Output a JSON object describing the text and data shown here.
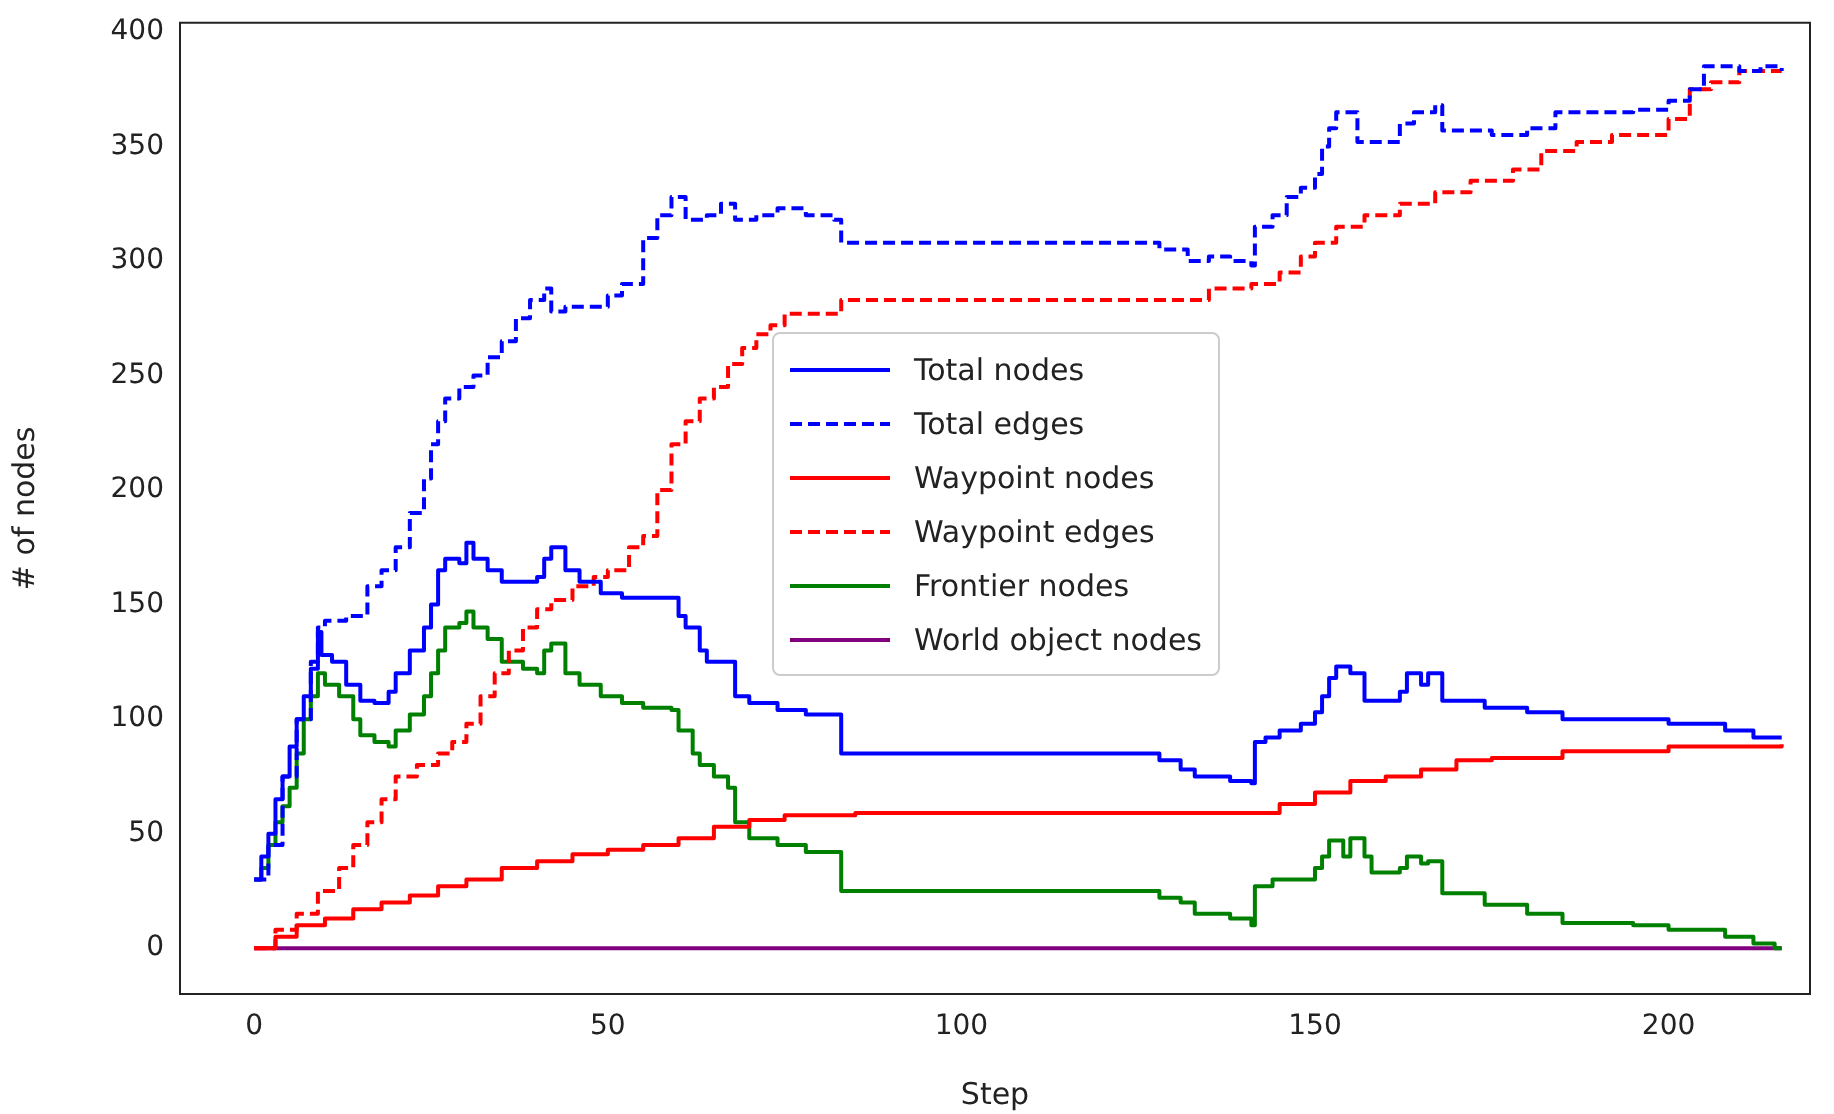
{
  "chart_data": {
    "type": "step",
    "xlabel": "Step",
    "ylabel": "# of nodes",
    "xlim": [
      -10.5,
      220
    ],
    "ylim": [
      -20,
      404
    ],
    "xticks": [
      0,
      50,
      100,
      150,
      200
    ],
    "yticks": [
      0,
      50,
      100,
      150,
      200,
      250,
      300,
      350,
      400
    ],
    "grid": false,
    "legend": "center",
    "series": [
      {
        "name": "Total nodes",
        "color": "#0000ff",
        "line_style": "solid",
        "x": [
          0,
          1,
          2,
          3,
          4,
          5,
          6,
          7,
          8,
          9,
          9.5,
          11,
          13,
          15,
          17,
          19,
          20,
          22,
          24,
          25,
          26,
          27,
          29,
          30,
          31,
          33,
          35,
          40,
          41,
          42,
          44,
          46,
          49,
          52,
          59,
          60,
          61,
          63,
          64,
          68,
          70,
          74,
          78,
          83,
          125,
          128,
          131,
          133,
          138,
          141,
          141.5,
          143,
          145,
          148,
          150,
          151,
          152,
          153,
          155,
          157,
          162,
          163,
          165,
          166,
          168,
          174,
          180,
          185,
          200,
          208,
          212,
          216
        ],
        "values": [
          30,
          40,
          50,
          65,
          75,
          88,
          100,
          110,
          122,
          138,
          128,
          125,
          115,
          108,
          107,
          112,
          120,
          130,
          140,
          150,
          165,
          170,
          168,
          177,
          170,
          165,
          160,
          162,
          170,
          175,
          165,
          160,
          155,
          153,
          153,
          145,
          140,
          130,
          125,
          110,
          107,
          104,
          102,
          85,
          85,
          82,
          78,
          75,
          73,
          72,
          90,
          92,
          95,
          98,
          103,
          110,
          118,
          123,
          120,
          108,
          112,
          120,
          115,
          120,
          108,
          105,
          103,
          100,
          98,
          95,
          92,
          92
        ]
      },
      {
        "name": "Total edges",
        "color": "#0000ff",
        "line_style": "dashed",
        "x": [
          0,
          2,
          4,
          6,
          8,
          9,
          10,
          13,
          16,
          18,
          20,
          22,
          24,
          25,
          26,
          27,
          29,
          31,
          33,
          35,
          37,
          39,
          41,
          42,
          44,
          46,
          50,
          52,
          55,
          57,
          59,
          61,
          64,
          66,
          68,
          71,
          74,
          78,
          82,
          83,
          125,
          128,
          132,
          135,
          138,
          141,
          141.5,
          144,
          146,
          148,
          150,
          151,
          152,
          153,
          156,
          160,
          162,
          164,
          167,
          168,
          175,
          180,
          184,
          195,
          200,
          203,
          205,
          210,
          213,
          216
        ],
        "values": [
          30,
          45,
          75,
          100,
          125,
          140,
          143,
          145,
          158,
          165,
          175,
          190,
          205,
          220,
          230,
          240,
          245,
          250,
          258,
          265,
          275,
          283,
          288,
          278,
          280,
          280,
          285,
          290,
          310,
          320,
          328,
          318,
          320,
          325,
          318,
          320,
          323,
          320,
          318,
          308,
          308,
          305,
          300,
          302,
          300,
          298,
          315,
          320,
          328,
          332,
          338,
          350,
          358,
          365,
          352,
          352,
          360,
          365,
          368,
          357,
          355,
          358,
          365,
          366,
          370,
          375,
          385,
          383,
          385,
          383
        ]
      },
      {
        "name": "Waypoint nodes",
        "color": "#ff0000",
        "line_style": "solid",
        "x": [
          0,
          3,
          6,
          10,
          14,
          18,
          22,
          26,
          30,
          35,
          40,
          45,
          50,
          55,
          60,
          65,
          70,
          75,
          85,
          140,
          145,
          150,
          155,
          160,
          165,
          170,
          175,
          185,
          200,
          216
        ],
        "values": [
          0,
          5,
          10,
          13,
          17,
          20,
          23,
          27,
          30,
          35,
          38,
          41,
          43,
          45,
          48,
          53,
          56,
          58,
          59,
          59,
          63,
          68,
          73,
          75,
          78,
          82,
          83,
          86,
          88,
          89
        ]
      },
      {
        "name": "Waypoint edges",
        "color": "#ff0000",
        "line_style": "dashed",
        "x": [
          0,
          3,
          6,
          9,
          12,
          14,
          16,
          18,
          20,
          23,
          26,
          28,
          30,
          32,
          34,
          36,
          38,
          40,
          42,
          45,
          48,
          50,
          53,
          55,
          57,
          59,
          61,
          63,
          65,
          67,
          69,
          71,
          73,
          75,
          83,
          130,
          135,
          141,
          145,
          148,
          150,
          153,
          157,
          162,
          167,
          172,
          178,
          182,
          187,
          192,
          200,
          203,
          206,
          210,
          216
        ],
        "values": [
          0,
          8,
          15,
          25,
          35,
          45,
          55,
          65,
          75,
          80,
          85,
          90,
          98,
          110,
          120,
          130,
          140,
          148,
          152,
          158,
          162,
          165,
          175,
          180,
          200,
          220,
          230,
          240,
          245,
          255,
          262,
          268,
          272,
          277,
          283,
          283,
          288,
          290,
          295,
          302,
          308,
          315,
          320,
          325,
          330,
          335,
          340,
          348,
          352,
          355,
          362,
          375,
          378,
          383,
          383
        ]
      },
      {
        "name": "Frontier nodes",
        "color": "#008000",
        "line_style": "solid",
        "x": [
          0,
          1,
          2,
          3,
          4,
          5,
          6,
          7,
          8,
          9,
          10,
          12,
          14,
          15,
          17,
          19,
          20,
          22,
          24,
          25,
          26,
          27,
          29,
          30,
          31,
          33,
          35,
          38,
          40,
          41,
          42,
          44,
          46,
          49,
          52,
          55,
          59,
          60,
          62,
          63,
          65,
          67,
          68,
          70,
          74,
          78,
          83,
          125,
          128,
          131,
          133,
          138,
          141,
          141.5,
          144,
          147,
          150,
          151,
          152,
          154,
          155,
          157,
          158,
          162,
          163,
          165,
          166,
          168,
          174,
          180,
          185,
          195,
          200,
          208,
          212,
          215,
          216
        ],
        "values": [
          30,
          35,
          45,
          55,
          62,
          70,
          85,
          100,
          110,
          120,
          115,
          110,
          100,
          93,
          90,
          88,
          95,
          102,
          110,
          120,
          130,
          140,
          142,
          147,
          140,
          135,
          125,
          122,
          120,
          130,
          133,
          120,
          115,
          110,
          107,
          105,
          104,
          95,
          85,
          80,
          75,
          70,
          55,
          48,
          45,
          42,
          25,
          25,
          22,
          20,
          15,
          13,
          10,
          27,
          30,
          30,
          35,
          40,
          47,
          40,
          48,
          40,
          33,
          35,
          40,
          37,
          38,
          24,
          19,
          15,
          11,
          10,
          8,
          5,
          2,
          0,
          0
        ]
      },
      {
        "name": "World object nodes",
        "color": "#800080",
        "line_style": "solid",
        "x": [
          0,
          216
        ],
        "values": [
          0,
          0
        ]
      }
    ]
  }
}
